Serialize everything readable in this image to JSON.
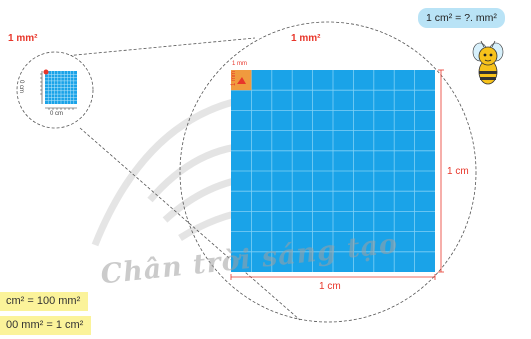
{
  "bubble_text": "1 cm² = ?. mm²",
  "watermark_text": "Chân trời sáng tạo",
  "zoom_small_label": "1 mm²",
  "zoom_big_label": "1 mm²",
  "small_scale_vertical": "0 cm",
  "small_scale_horizontal": "0 cm",
  "tiny_mm_top": "1 mm",
  "tiny_mm_side": "1 mm",
  "dim_right": "1 cm",
  "dim_bottom": "1 cm",
  "equation_1": "cm² = 100 mm²",
  "equation_2": "00 mm² = 1 cm²",
  "colors": {
    "grid_blue": "#1aa3e8",
    "highlight_orange": "#f09a3e",
    "label_red": "#e8362a",
    "yellow_box": "#fbf39a",
    "bubble_blue": "#b9e3f6"
  },
  "icons": [
    "bee-icon",
    "watermark-book-logo"
  ]
}
